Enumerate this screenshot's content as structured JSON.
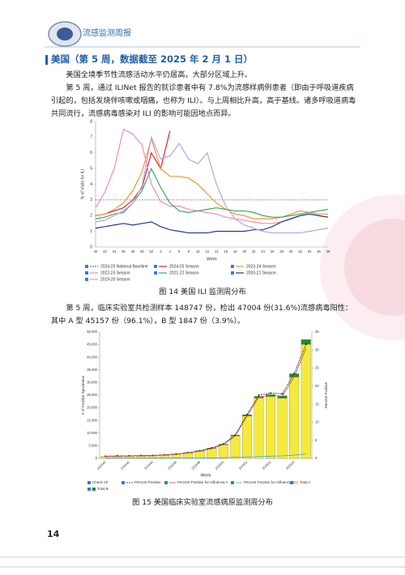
{
  "header": {
    "title": "流感监测周报"
  },
  "section_title": "美国（第 5 周，数据截至 2025 年 2 月 1 日）",
  "paragraphs": [
    "美国全境季节性流感活动水平仍居高，大部分区域上升。",
    "第 5 周，通过 ILINet 报告的就诊患者中有 7.8%为流感样病例患者（即由于呼吸道疾病引起的，包括发烧伴咳嗽或咽痛，也称为 ILI）。与上周相比升高，高于基线。诸多呼吸道病毒共同流行，流感病毒感染对 ILI 的影响可能因地点而异。",
    "第 5 周，临床实验室共检测样本 148747 份，检出 47004 份(31.6%)流感病毒阳性：其中 A 型 45157 份（96.1%），B 型 1847 份（3.9%）。"
  ],
  "captions": [
    "图 14   美国 ILI 监测周分布",
    "图 15   美国临床实验室流感病原监测周分布"
  ],
  "page_number": 14,
  "chart_data": [
    {
      "type": "line",
      "x_label": "Week",
      "y_label": "% of Visits for ILI",
      "categories": [
        "40",
        "42",
        "44",
        "46",
        "48",
        "50",
        "52",
        "2",
        "4",
        "6",
        "8",
        "10",
        "12",
        "14",
        "16",
        "18",
        "20",
        "22",
        "24",
        "26",
        "28",
        "30",
        "32",
        "34",
        "36",
        "38"
      ],
      "ylim": [
        0,
        8
      ],
      "yticks": [
        0,
        1,
        2,
        3,
        4,
        5,
        6,
        7,
        8
      ],
      "grid": false,
      "series": [
        {
          "name": "2024-25 National Baseline",
          "color": "#555555",
          "dash": true,
          "values": [
            3,
            3,
            3,
            3,
            3,
            3,
            3,
            3,
            3,
            3,
            3,
            3,
            3,
            3,
            3,
            3,
            3,
            3,
            3,
            3,
            3,
            3,
            3,
            3,
            3,
            3
          ]
        },
        {
          "name": "2024-25 Season",
          "color": "#d62728",
          "dash": false,
          "values": [
            2.0,
            2.1,
            2.3,
            2.5,
            3.0,
            3.8,
            6.0,
            5.0,
            7.4,
            null,
            null,
            null,
            null,
            null,
            null,
            null,
            null,
            null,
            null,
            null,
            null,
            null,
            null,
            null,
            null,
            null
          ]
        },
        {
          "name": "2023-24 Season",
          "color": "#f0953a",
          "dash": false,
          "values": [
            2.0,
            2.1,
            2.4,
            2.8,
            3.6,
            4.8,
            6.9,
            5.0,
            4.5,
            4.5,
            4.4,
            4.0,
            3.4,
            2.8,
            2.4,
            2.1,
            2.0,
            1.8,
            1.8,
            1.8,
            1.9,
            2.1,
            2.3,
            2.2,
            2.1,
            2.1
          ]
        },
        {
          "name": "2022-23 Season",
          "color": "#f08cb8",
          "dash": false,
          "values": [
            2.5,
            3.5,
            5.0,
            7.5,
            7.2,
            6.5,
            4.0,
            2.9,
            2.6,
            2.6,
            2.4,
            2.3,
            2.2,
            2.1,
            1.9,
            1.8,
            1.7,
            1.6,
            1.5,
            1.5,
            1.6,
            1.8,
            2.0,
            2.1,
            2.0,
            1.9
          ]
        },
        {
          "name": "2021-22 Season",
          "color": "#3aa860",
          "dash": false,
          "values": [
            1.8,
            1.9,
            2.1,
            2.2,
            2.8,
            3.6,
            5.0,
            3.8,
            2.8,
            2.3,
            2.2,
            2.3,
            2.4,
            2.5,
            2.4,
            2.3,
            2.3,
            2.2,
            2.0,
            1.9,
            1.9,
            2.0,
            2.1,
            2.2,
            2.3,
            2.4
          ]
        },
        {
          "name": "2020-21 Season",
          "color": "#1f3a8c",
          "dash": false,
          "values": [
            1.2,
            1.3,
            1.4,
            1.5,
            1.4,
            1.5,
            1.6,
            1.3,
            1.1,
            1.0,
            0.9,
            0.9,
            0.9,
            1.0,
            1.0,
            1.0,
            1.0,
            1.1,
            1.1,
            1.3,
            1.6,
            1.8,
            2.0,
            2.1,
            2.0,
            1.9
          ]
        },
        {
          "name": "2019-20 Season",
          "color": "#b9a3e3",
          "dash": false,
          "values": [
            1.6,
            1.7,
            2.0,
            2.3,
            2.8,
            3.9,
            7.0,
            5.6,
            5.8,
            6.6,
            5.6,
            5.3,
            6.0,
            4.0,
            2.6,
            1.8,
            1.4,
            1.2,
            1.0,
            0.9,
            0.9,
            0.9,
            0.9,
            1.0,
            1.1,
            1.2
          ]
        }
      ]
    },
    {
      "type": "combo",
      "x_label": "Week",
      "y_label": "# of Positive Specimens",
      "y2_label": "Percent Positive",
      "legend_check_all": "Check All",
      "categories": [
        "202440",
        null,
        "202442",
        null,
        "202444",
        null,
        "202446",
        null,
        "202448",
        null,
        "202450",
        null,
        "202452",
        null,
        "202502",
        null,
        "202504",
        null
      ],
      "ylim": [
        0,
        50000
      ],
      "yticks": [
        0,
        {
          "value": 5000,
          "label": "5,000"
        },
        {
          "value": 10000,
          "label": "10,000"
        },
        {
          "value": 15000,
          "label": "15,000"
        },
        {
          "value": 20000,
          "label": "20,000"
        },
        {
          "value": 25000,
          "label": "25,000"
        },
        {
          "value": 30000,
          "label": "30,000"
        },
        {
          "value": 35000,
          "label": "35,000"
        },
        {
          "value": 40000,
          "label": "40,000"
        },
        {
          "value": 45000,
          "label": "45,000"
        },
        {
          "value": 50000,
          "label": "50,000"
        }
      ],
      "y2lim": [
        0,
        35
      ],
      "y2ticks": [
        0,
        5,
        10,
        15,
        20,
        25,
        30,
        35
      ],
      "series": [
        {
          "name": "Percent Positive",
          "kind": "line",
          "axis": "y2",
          "color": "#222222",
          "dash": true,
          "markers": true,
          "values": [
            0.6,
            0.7,
            0.7,
            0.8,
            0.8,
            1.0,
            1.2,
            1.6,
            2.1,
            2.9,
            4.0,
            6.5,
            12.1,
            17.5,
            18.1,
            17.9,
            23.5,
            31.6
          ]
        },
        {
          "name": "Percent Positive for Influenza A",
          "kind": "line",
          "axis": "y2",
          "color": "#c0504d",
          "dash": false,
          "markers": false,
          "values": [
            0.5,
            0.6,
            0.6,
            0.7,
            0.7,
            0.9,
            1.1,
            1.5,
            2.0,
            2.7,
            3.8,
            6.2,
            11.7,
            17.0,
            17.5,
            17.2,
            22.6,
            30.4
          ]
        },
        {
          "name": "Percent Positive for Influenza B",
          "kind": "line",
          "axis": "y2",
          "color": "#4ba3c3",
          "dash": false,
          "markers": false,
          "values": [
            0.1,
            0.1,
            0.1,
            0.1,
            0.1,
            0.1,
            0.1,
            0.1,
            0.1,
            0.1,
            0.2,
            0.3,
            0.4,
            0.5,
            0.6,
            0.7,
            0.9,
            1.2
          ]
        },
        {
          "name": "Total A",
          "kind": "bar",
          "color": "#f5ea3c",
          "values": [
            720,
            780,
            850,
            930,
            1050,
            1250,
            1650,
            2150,
            2900,
            3900,
            5400,
            8900,
            16800,
            23900,
            24500,
            23800,
            32200,
            45157
          ]
        },
        {
          "name": "Total B",
          "kind": "bar",
          "color": "#1e8a3a",
          "values": [
            40,
            45,
            50,
            55,
            60,
            70,
            80,
            100,
            130,
            170,
            220,
            350,
            500,
            650,
            800,
            1000,
            1300,
            1847
          ]
        }
      ]
    }
  ]
}
